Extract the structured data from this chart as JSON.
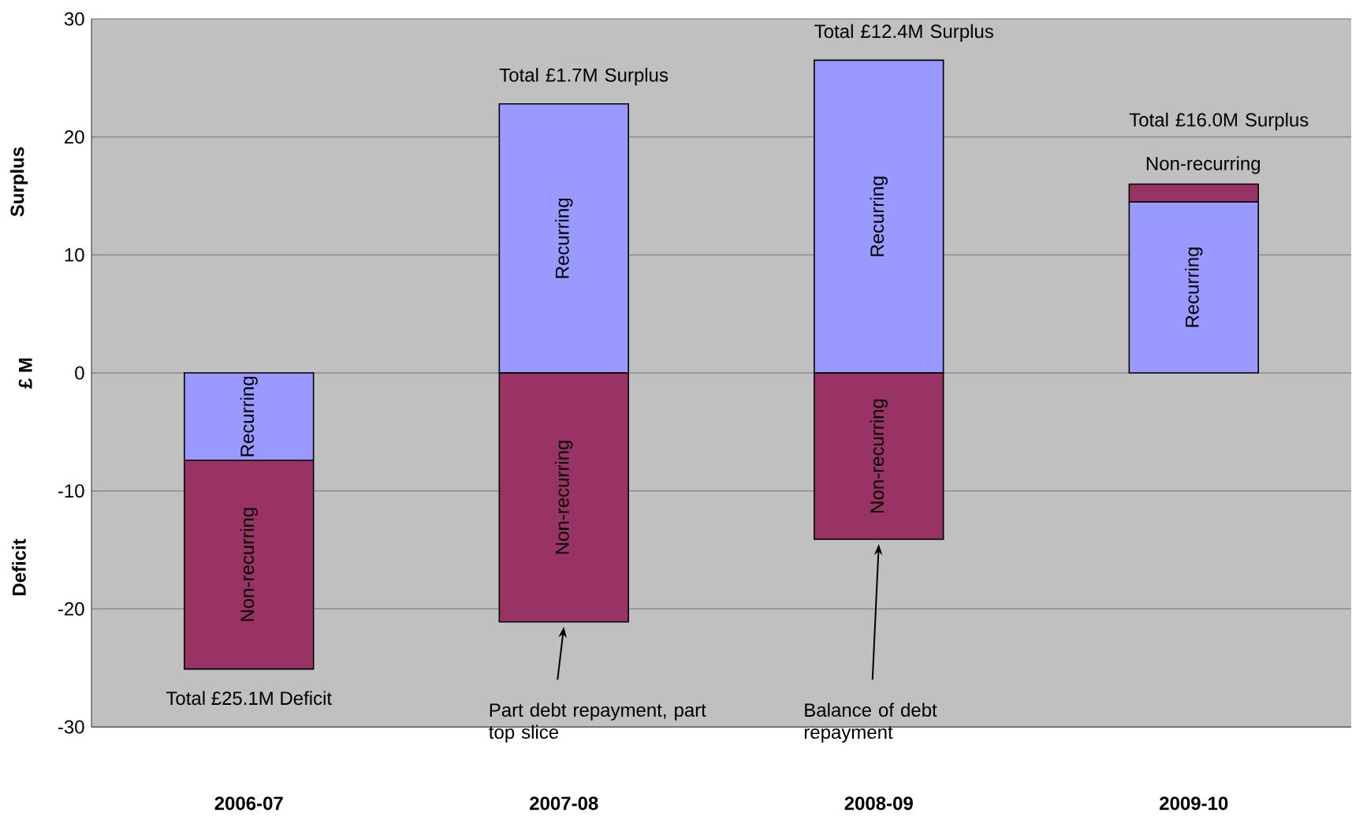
{
  "chart_data": {
    "type": "bar",
    "stacked": true,
    "categories": [
      "2006-07",
      "2007-08",
      "2008-09",
      "2009-10"
    ],
    "series": [
      {
        "name": "Recurring",
        "color": "#9999ff",
        "values": [
          -7.4,
          22.8,
          26.5,
          14.5
        ]
      },
      {
        "name": "Non-recurring",
        "color": "#993366",
        "values": [
          -17.7,
          -21.1,
          -14.1,
          1.5
        ]
      }
    ],
    "ylabel": "£ M",
    "ylim": [
      -30,
      30
    ],
    "yticks": [
      -30,
      -20,
      -10,
      0,
      10,
      20,
      30
    ],
    "grid": "y",
    "totals": [
      "Total £25.1M Deficit",
      "Total £1.7M Surplus",
      "Total £12.4M Surplus",
      "Total £16.0M Surplus"
    ],
    "annotations": [
      "Surplus",
      "Deficit",
      "Part debt repayment, part top slice",
      "Balance of debt repayment"
    ]
  }
}
